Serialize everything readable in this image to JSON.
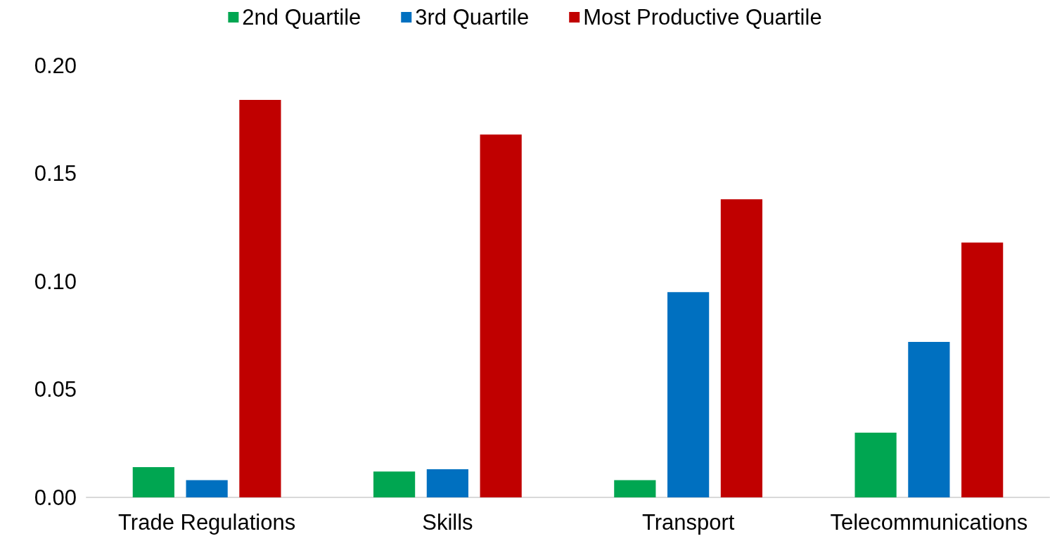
{
  "chart_data": {
    "type": "bar",
    "categories": [
      "Trade Regulations",
      "Skills",
      "Transport",
      "Telecommunications"
    ],
    "series": [
      {
        "name": "2nd Quartile",
        "color": "#00a651",
        "values": [
          0.014,
          0.012,
          0.008,
          0.03
        ]
      },
      {
        "name": "3rd Quartile",
        "color": "#0070c0",
        "values": [
          0.008,
          0.013,
          0.095,
          0.072
        ]
      },
      {
        "name": "Most Productive Quartile",
        "color": "#c00000",
        "values": [
          0.184,
          0.168,
          0.138,
          0.118
        ]
      }
    ],
    "ylim": [
      0,
      0.2
    ],
    "yticks": [
      {
        "value": 0,
        "label": "0.00"
      },
      {
        "value": 0.05,
        "label": "0.05"
      },
      {
        "value": 0.1,
        "label": "0.10"
      },
      {
        "value": 0.15,
        "label": "0.15"
      },
      {
        "value": 0.2,
        "label": "0.20"
      }
    ],
    "grid": false,
    "legend": "top"
  }
}
